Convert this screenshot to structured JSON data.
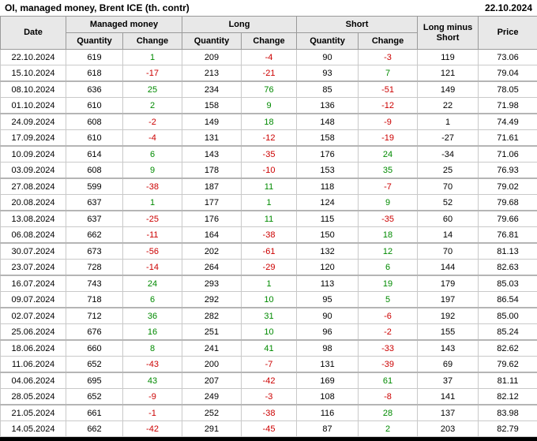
{
  "header": {
    "title": "OI, managed money, Brent ICE (th. contr)",
    "report_date": "22.10.2024"
  },
  "colors": {
    "positive_change": "#008a00",
    "negative_change": "#cc0000",
    "header_bg": "#e8e8e8",
    "grid_line": "#c9c9c9"
  },
  "chart_data": {
    "type": "table",
    "title": "OI, managed money, Brent ICE (th. contr)",
    "report_date": "22.10.2024",
    "column_groups": {
      "date": "Date",
      "managed_money": "Managed money",
      "long": "Long",
      "short": "Short",
      "long_minus_short": "Long minus Short",
      "price": "Price"
    },
    "sub_headers": {
      "mm_quantity": "Quantity",
      "mm_change": "Change",
      "long_quantity": "Quantity",
      "long_change": "Change",
      "short_quantity": "Quantity",
      "short_change": "Change"
    },
    "columns": [
      "Date",
      "Managed money Quantity",
      "Managed money Change",
      "Long Quantity",
      "Long Change",
      "Short Quantity",
      "Short Change",
      "Long minus Short",
      "Price"
    ],
    "change_column_indexes": [
      2,
      4,
      6
    ],
    "cell_names": [
      "date-cell",
      "mm-quantity-cell",
      "mm-change-cell",
      "long-quantity-cell",
      "long-change-cell",
      "short-quantity-cell",
      "short-change-cell",
      "long-minus-short-cell",
      "price-cell"
    ],
    "rows": [
      [
        "22.10.2024",
        "619",
        "1",
        "209",
        "-4",
        "90",
        "-3",
        "119",
        "73.06"
      ],
      [
        "15.10.2024",
        "618",
        "-17",
        "213",
        "-21",
        "93",
        "7",
        "121",
        "79.04"
      ],
      [
        "08.10.2024",
        "636",
        "25",
        "234",
        "76",
        "85",
        "-51",
        "149",
        "78.05"
      ],
      [
        "01.10.2024",
        "610",
        "2",
        "158",
        "9",
        "136",
        "-12",
        "22",
        "71.98"
      ],
      [
        "24.09.2024",
        "608",
        "-2",
        "149",
        "18",
        "148",
        "-9",
        "1",
        "74.49"
      ],
      [
        "17.09.2024",
        "610",
        "-4",
        "131",
        "-12",
        "158",
        "-19",
        "-27",
        "71.61"
      ],
      [
        "10.09.2024",
        "614",
        "6",
        "143",
        "-35",
        "176",
        "24",
        "-34",
        "71.06"
      ],
      [
        "03.09.2024",
        "608",
        "9",
        "178",
        "-10",
        "153",
        "35",
        "25",
        "76.93"
      ],
      [
        "27.08.2024",
        "599",
        "-38",
        "187",
        "11",
        "118",
        "-7",
        "70",
        "79.02"
      ],
      [
        "20.08.2024",
        "637",
        "1",
        "177",
        "1",
        "124",
        "9",
        "52",
        "79.68"
      ],
      [
        "13.08.2024",
        "637",
        "-25",
        "176",
        "11",
        "115",
        "-35",
        "60",
        "79.66"
      ],
      [
        "06.08.2024",
        "662",
        "-11",
        "164",
        "-38",
        "150",
        "18",
        "14",
        "76.81"
      ],
      [
        "30.07.2024",
        "673",
        "-56",
        "202",
        "-61",
        "132",
        "12",
        "70",
        "81.13"
      ],
      [
        "23.07.2024",
        "728",
        "-14",
        "264",
        "-29",
        "120",
        "6",
        "144",
        "82.63"
      ],
      [
        "16.07.2024",
        "743",
        "24",
        "293",
        "1",
        "113",
        "19",
        "179",
        "85.03"
      ],
      [
        "09.07.2024",
        "718",
        "6",
        "292",
        "10",
        "95",
        "5",
        "197",
        "86.54"
      ],
      [
        "02.07.2024",
        "712",
        "36",
        "282",
        "31",
        "90",
        "-6",
        "192",
        "85.00"
      ],
      [
        "25.06.2024",
        "676",
        "16",
        "251",
        "10",
        "96",
        "-2",
        "155",
        "85.24"
      ],
      [
        "18.06.2024",
        "660",
        "8",
        "241",
        "41",
        "98",
        "-33",
        "143",
        "82.62"
      ],
      [
        "11.06.2024",
        "652",
        "-43",
        "200",
        "-7",
        "131",
        "-39",
        "69",
        "79.62"
      ],
      [
        "04.06.2024",
        "695",
        "43",
        "207",
        "-42",
        "169",
        "61",
        "37",
        "81.11"
      ],
      [
        "28.05.2024",
        "652",
        "-9",
        "249",
        "-3",
        "108",
        "-8",
        "141",
        "82.12"
      ],
      [
        "21.05.2024",
        "661",
        "-1",
        "252",
        "-38",
        "116",
        "28",
        "137",
        "83.98"
      ],
      [
        "14.05.2024",
        "662",
        "-42",
        "291",
        "-45",
        "87",
        "2",
        "203",
        "82.79"
      ]
    ]
  }
}
